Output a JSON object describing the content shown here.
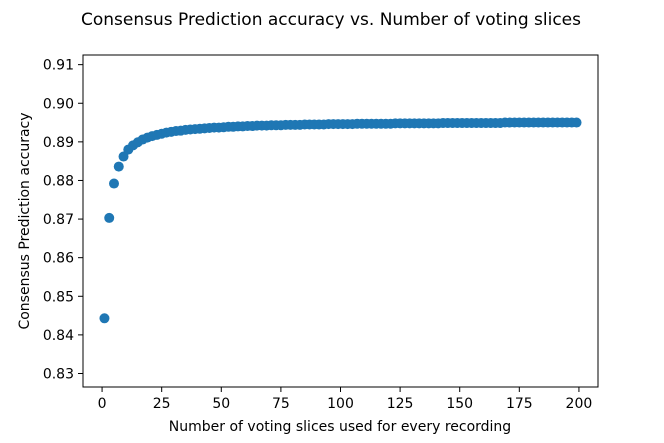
{
  "chart_data": {
    "type": "scatter",
    "title": "Consensus Prediction accuracy vs. Number of voting slices",
    "xlabel": "Number of voting slices used for every recording",
    "ylabel": "Consensus Prediction accuracy",
    "xlim": [
      -8,
      208
    ],
    "ylim": [
      0.8265,
      0.9125
    ],
    "xticks": [
      0,
      25,
      50,
      75,
      100,
      125,
      150,
      175,
      200
    ],
    "yticks": [
      0.83,
      0.84,
      0.85,
      0.86,
      0.87,
      0.88,
      0.89,
      0.9,
      0.91
    ],
    "xtick_labels": [
      "0",
      "25",
      "50",
      "75",
      "100",
      "125",
      "150",
      "175",
      "200"
    ],
    "ytick_labels": [
      "0.83",
      "0.84",
      "0.85",
      "0.86",
      "0.87",
      "0.88",
      "0.89",
      "0.90",
      "0.91"
    ],
    "grid": false,
    "marker_color": "#1f77b4",
    "series": [
      {
        "x": [
          1,
          3,
          5,
          7,
          9,
          11,
          13,
          15,
          17,
          19,
          21,
          23,
          25,
          27,
          29,
          31,
          33,
          35,
          37,
          39,
          41,
          43,
          45,
          47,
          49,
          51,
          53,
          55,
          57,
          59,
          61,
          63,
          65,
          67,
          69,
          71,
          73,
          75,
          77,
          79,
          81,
          83,
          85,
          87,
          89,
          91,
          93,
          95,
          97,
          99,
          101,
          103,
          105,
          107,
          109,
          111,
          113,
          115,
          117,
          119,
          121,
          123,
          125,
          127,
          129,
          131,
          133,
          135,
          137,
          139,
          141,
          143,
          145,
          147,
          149,
          151,
          153,
          155,
          157,
          159,
          161,
          163,
          165,
          167,
          169,
          171,
          173,
          175,
          177,
          179,
          181,
          183,
          185,
          187,
          189,
          191,
          193,
          195,
          197,
          199
        ],
        "y": [
          0.8443,
          0.8703,
          0.8792,
          0.8836,
          0.8862,
          0.888,
          0.8891,
          0.8899,
          0.8906,
          0.8911,
          0.8915,
          0.8918,
          0.8921,
          0.8924,
          0.8926,
          0.8928,
          0.8929,
          0.8931,
          0.8932,
          0.8933,
          0.8934,
          0.8935,
          0.8936,
          0.8937,
          0.8937,
          0.8938,
          0.8939,
          0.8939,
          0.894,
          0.894,
          0.8941,
          0.8941,
          0.8942,
          0.8942,
          0.8942,
          0.8943,
          0.8943,
          0.8943,
          0.8944,
          0.8944,
          0.8944,
          0.8944,
          0.8945,
          0.8945,
          0.8945,
          0.8945,
          0.8945,
          0.8946,
          0.8946,
          0.8946,
          0.8946,
          0.8946,
          0.8946,
          0.8947,
          0.8947,
          0.8947,
          0.8947,
          0.8947,
          0.8947,
          0.8947,
          0.8947,
          0.8948,
          0.8948,
          0.8948,
          0.8948,
          0.8948,
          0.8948,
          0.8948,
          0.8948,
          0.8948,
          0.8948,
          0.8949,
          0.8949,
          0.8949,
          0.8949,
          0.8949,
          0.8949,
          0.8949,
          0.8949,
          0.8949,
          0.8949,
          0.8949,
          0.8949,
          0.8949,
          0.895,
          0.895,
          0.895,
          0.895,
          0.895,
          0.895,
          0.895,
          0.895,
          0.895,
          0.895,
          0.895,
          0.895,
          0.895,
          0.895,
          0.895,
          0.895
        ]
      }
    ]
  }
}
